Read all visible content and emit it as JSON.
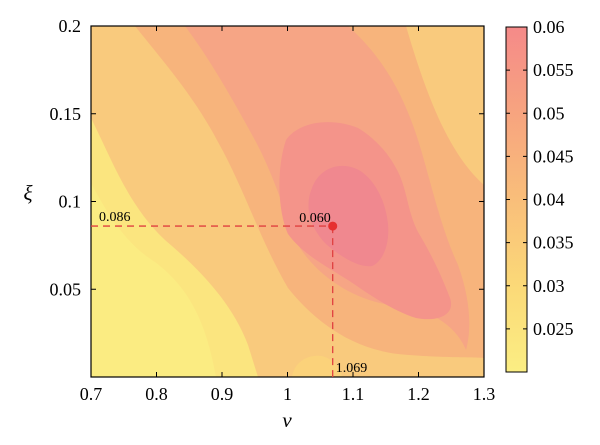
{
  "chart_data": {
    "type": "heatmap",
    "subtype": "filled-contour",
    "title": "",
    "xlabel": "ν",
    "ylabel": "ξ",
    "xlim": [
      0.7,
      1.3
    ],
    "ylim": [
      0.0,
      0.2
    ],
    "xticks": [
      "0.7",
      "0.8",
      "0.9",
      "1",
      "1.1",
      "1.2",
      "1.3"
    ],
    "yticks": [
      "0.05",
      "0.1",
      "0.15",
      "0.2"
    ],
    "colorbar": {
      "range": [
        0.02,
        0.06
      ],
      "ticks": [
        "0.025",
        "0.03",
        "0.035",
        "0.04",
        "0.045",
        "0.05",
        "0.055",
        "0.06"
      ],
      "color_low": "#fbee83",
      "color_high": "#f58a89"
    },
    "peak": {
      "x": 1.069,
      "y": 0.086,
      "value": 0.06,
      "x_label": "1.069",
      "y_label": "0.086",
      "value_label": "0.060",
      "marker_color": "#e63030",
      "guide_color": "#e04040"
    },
    "contour_levels": [
      0.029,
      0.036,
      0.041,
      0.048,
      0.053,
      0.057
    ],
    "field_samples": {
      "note": "approximate value of the plotted surface on a grid",
      "x": [
        0.7,
        0.75,
        0.8,
        0.85,
        0.9,
        0.95,
        1.0,
        1.05,
        1.1,
        1.15,
        1.2,
        1.25,
        1.3
      ],
      "y": [
        0.0,
        0.025,
        0.05,
        0.075,
        0.1,
        0.125,
        0.15,
        0.175,
        0.2
      ],
      "z": [
        [
          0.024,
          0.022,
          0.023,
          0.025,
          0.03,
          0.034,
          0.036,
          0.033,
          0.034,
          0.038,
          0.039,
          0.04,
          0.038
        ],
        [
          0.026,
          0.024,
          0.025,
          0.028,
          0.034,
          0.039,
          0.043,
          0.046,
          0.047,
          0.048,
          0.047,
          0.044,
          0.04
        ],
        [
          0.028,
          0.026,
          0.028,
          0.031,
          0.037,
          0.043,
          0.048,
          0.051,
          0.054,
          0.055,
          0.054,
          0.049,
          0.043
        ],
        [
          0.029,
          0.03,
          0.032,
          0.035,
          0.04,
          0.046,
          0.051,
          0.057,
          0.059,
          0.058,
          0.054,
          0.047,
          0.041
        ],
        [
          0.031,
          0.033,
          0.036,
          0.039,
          0.043,
          0.047,
          0.051,
          0.056,
          0.058,
          0.055,
          0.05,
          0.044,
          0.038
        ],
        [
          0.034,
          0.036,
          0.039,
          0.042,
          0.046,
          0.048,
          0.051,
          0.053,
          0.053,
          0.05,
          0.046,
          0.041,
          0.037
        ],
        [
          0.036,
          0.038,
          0.041,
          0.044,
          0.046,
          0.048,
          0.05,
          0.05,
          0.049,
          0.047,
          0.043,
          0.039,
          0.035
        ],
        [
          0.037,
          0.039,
          0.041,
          0.043,
          0.045,
          0.047,
          0.048,
          0.048,
          0.047,
          0.045,
          0.041,
          0.037,
          0.034
        ],
        [
          0.037,
          0.038,
          0.04,
          0.042,
          0.044,
          0.046,
          0.047,
          0.047,
          0.046,
          0.043,
          0.04,
          0.036,
          0.033
        ]
      ]
    }
  }
}
